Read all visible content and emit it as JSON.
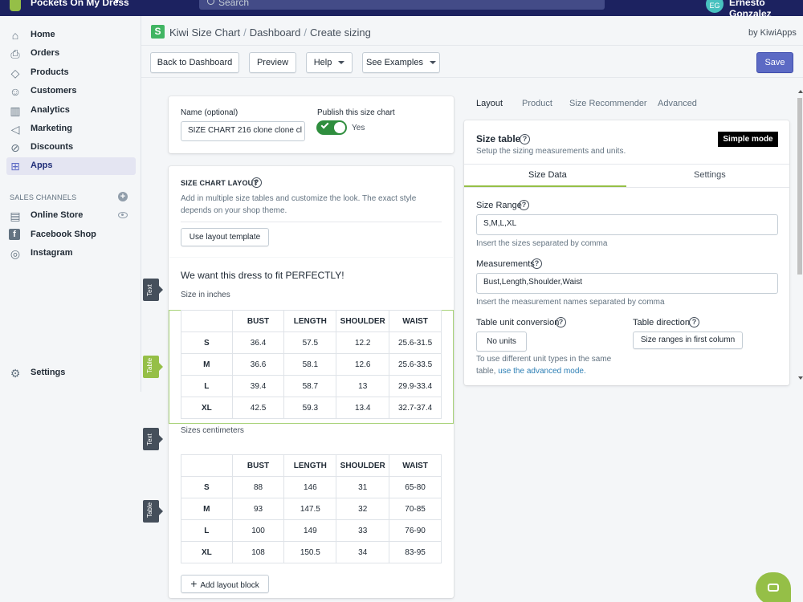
{
  "topbar": {
    "store_name": "Pockets On My Dress",
    "search_placeholder": "Search",
    "user_initials": "EG",
    "user_name": "Ernesto Gonzalez"
  },
  "sidebar": {
    "items": [
      {
        "label": "Home",
        "icon": "home-icon"
      },
      {
        "label": "Orders",
        "icon": "orders-icon"
      },
      {
        "label": "Products",
        "icon": "tag-icon"
      },
      {
        "label": "Customers",
        "icon": "person-icon"
      },
      {
        "label": "Analytics",
        "icon": "bar-chart-icon"
      },
      {
        "label": "Marketing",
        "icon": "megaphone-icon"
      },
      {
        "label": "Discounts",
        "icon": "discount-icon"
      },
      {
        "label": "Apps",
        "icon": "apps-icon"
      }
    ],
    "sales_channels_heading": "SALES CHANNELS",
    "channels": [
      {
        "label": "Online Store",
        "icon": "store-icon"
      },
      {
        "label": "Facebook Shop",
        "icon": "facebook-icon"
      },
      {
        "label": "Instagram",
        "icon": "instagram-icon"
      }
    ],
    "settings_label": "Settings"
  },
  "header": {
    "app_name": "Kiwi Size Chart",
    "crumb_dashboard": "Dashboard",
    "crumb_current": "Create sizing",
    "by_line": "by KiwiApps"
  },
  "toolbar": {
    "back_label": "Back to Dashboard",
    "preview_label": "Preview",
    "help_label": "Help",
    "examples_label": "See Examples",
    "save_label": "Save"
  },
  "name_card": {
    "name_label": "Name (optional)",
    "name_value": "SIZE CHART 216 clone clone cl",
    "publish_label": "Publish this size chart",
    "publish_state": "Yes"
  },
  "layout_card": {
    "title": "SIZE CHART LAYOUT",
    "description": "Add in multiple size tables and customize the look. The exact style depends on your shop theme.",
    "template_button": "Use layout template",
    "preview_heading": "We want this dress to fit PERFECTLY!",
    "inches_label": "Size in inches",
    "cm_label": "Sizes centimeters",
    "add_block_label": "Add layout block",
    "tag_text": "Text",
    "tag_table": "Table"
  },
  "table_headers": [
    "",
    "BUST",
    "LENGTH",
    "SHOULDER",
    "WAIST"
  ],
  "inches_rows": [
    [
      "S",
      "36.4",
      "57.5",
      "12.2",
      "25.6-31.5"
    ],
    [
      "M",
      "36.6",
      "58.1",
      "12.6",
      "25.6-33.5"
    ],
    [
      "L",
      "39.4",
      "58.7",
      "13",
      "29.9-33.4"
    ],
    [
      "XL",
      "42.5",
      "59.3",
      "13.4",
      "32.7-37.4"
    ]
  ],
  "cm_rows": [
    [
      "S",
      "88",
      "146",
      "31",
      "65-80"
    ],
    [
      "M",
      "93",
      "147.5",
      "32",
      "70-85"
    ],
    [
      "L",
      "100",
      "149",
      "33",
      "76-90"
    ],
    [
      "XL",
      "108",
      "150.5",
      "34",
      "83-95"
    ]
  ],
  "right_panel": {
    "tabs": [
      "Layout",
      "Product",
      "Size Recommender",
      "Advanced"
    ],
    "active_tab": "Layout",
    "title": "Size table",
    "subtitle": "Setup the sizing measurements and units.",
    "mode_badge": "Simple mode",
    "subtabs": [
      "Size Data",
      "Settings"
    ],
    "size_range_label": "Size Range",
    "size_range_value": "S,M,L,XL",
    "size_range_help": "Insert the sizes separated by comma",
    "measurements_label": "Measurements",
    "measurements_value": "Bust,Length,Shoulder,Waist",
    "measurements_help": "Insert the measurement names separated by comma",
    "unit_label": "Table unit conversion",
    "unit_value": "No units",
    "unit_help": "To use different unit types in the same table,",
    "unit_link": "use the advanced mode.",
    "direction_label": "Table direction",
    "direction_value": "Size ranges in first column"
  },
  "colors": {
    "topbar": "#1c2260",
    "primary": "#5c6ac4",
    "kiwi_green": "#95bf47",
    "toggle_on": "#2f8e3e"
  }
}
